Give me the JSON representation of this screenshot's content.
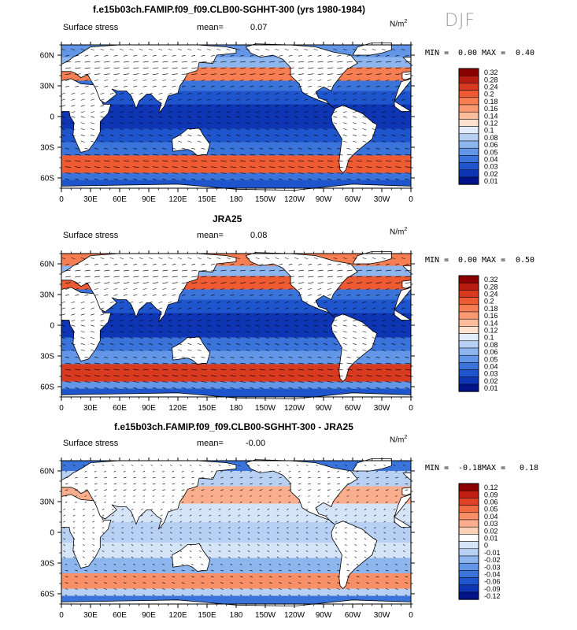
{
  "season": "DJF",
  "units_base": "N/m",
  "units_exp": "2",
  "x_ticks": [
    "0",
    "30E",
    "60E",
    "90E",
    "120E",
    "150E",
    "180",
    "150W",
    "120W",
    "90W",
    "60W",
    "30W",
    "0"
  ],
  "y_ticks": [
    "60N",
    "30N",
    "0",
    "30S",
    "60S"
  ],
  "panels": [
    {
      "title": "f.e15b03ch.FAMIP.f09_f09.CLB00-SGHHT-300 (yrs 1980-1984)",
      "field": "Surface stress",
      "mean_label": "mean=",
      "mean": "0.07",
      "min_label": "MIN =",
      "min": "0.00",
      "max_label": "MAX =",
      "max": "0.40",
      "colorbar": [
        "0.32",
        "0.28",
        "0.24",
        "0.2",
        "0.18",
        "0.16",
        "0.14",
        "0.12",
        "0.1",
        "0.08",
        "0.06",
        "0.05",
        "0.04",
        "0.03",
        "0.02",
        "0.01"
      ]
    },
    {
      "title": "JRA25",
      "field": "Surface stress",
      "mean_label": "mean=",
      "mean": "0.08",
      "min_label": "MIN =",
      "min": "0.00",
      "max_label": "MAX =",
      "max": "0.50",
      "colorbar": [
        "0.32",
        "0.28",
        "0.24",
        "0.2",
        "0.18",
        "0.16",
        "0.14",
        "0.12",
        "0.1",
        "0.08",
        "0.06",
        "0.05",
        "0.04",
        "0.03",
        "0.02",
        "0.01"
      ]
    },
    {
      "title": "f.e15b03ch.FAMIP.f09_f09.CLB00-SGHHT-300 - JRA25",
      "field": "Surface stress",
      "mean_label": "mean=",
      "mean": "-0.00",
      "min_label": "MIN =",
      "min": "-0.18",
      "max_label": "MAX =",
      "max": "0.18",
      "colorbar": [
        "0.12",
        "0.09",
        "0.06",
        "0.05",
        "0.04",
        "0.03",
        "0.02",
        "0.01",
        "0",
        "-0.01",
        "-0.02",
        "-0.03",
        "-0.04",
        "-0.06",
        "-0.09",
        "-0.12"
      ]
    }
  ],
  "colors": {
    "abs_scale": [
      "#8b0000",
      "#b81b10",
      "#d83a20",
      "#ee5a32",
      "#f77e52",
      "#fb9a72",
      "#fcbd9c",
      "#fde3cf",
      "#e2ecfa",
      "#b7d0f4",
      "#8db5ee",
      "#6396e6",
      "#3a74da",
      "#1f55cc",
      "#0e36b4",
      "#00148a"
    ],
    "diff_scale": [
      "#8b0000",
      "#c01e10",
      "#e04228",
      "#f26a42",
      "#f88f66",
      "#fbae8d",
      "#fdd0b8",
      "#ffffff",
      "#d6e4f8",
      "#b7d0f4",
      "#8db5ee",
      "#6396e6",
      "#3a74da",
      "#1f55cc",
      "#0e36b4",
      "#00148a"
    ],
    "land": "#ffffff",
    "vector": "#000000"
  },
  "chart_data": [
    {
      "type": "heatmap",
      "title": "f.e15b03ch.FAMIP.f09_f09.CLB00-SGHHT-300 (yrs 1980-1984)",
      "xlabel": "",
      "ylabel": "",
      "field": "Surface stress",
      "units": "N/m2",
      "xlim": [
        0,
        360
      ],
      "ylim": [
        -70,
        70
      ],
      "mean": 0.07,
      "min": 0.0,
      "max": 0.4,
      "levels": [
        0.01,
        0.02,
        0.03,
        0.04,
        0.05,
        0.06,
        0.08,
        0.1,
        0.12,
        0.14,
        0.16,
        0.18,
        0.2,
        0.24,
        0.28,
        0.32
      ]
    },
    {
      "type": "heatmap",
      "title": "JRA25",
      "xlabel": "",
      "ylabel": "",
      "field": "Surface stress",
      "units": "N/m2",
      "xlim": [
        0,
        360
      ],
      "ylim": [
        -70,
        70
      ],
      "mean": 0.08,
      "min": 0.0,
      "max": 0.5,
      "levels": [
        0.01,
        0.02,
        0.03,
        0.04,
        0.05,
        0.06,
        0.08,
        0.1,
        0.12,
        0.14,
        0.16,
        0.18,
        0.2,
        0.24,
        0.28,
        0.32
      ]
    },
    {
      "type": "heatmap",
      "title": "f.e15b03ch.FAMIP.f09_f09.CLB00-SGHHT-300 - JRA25",
      "xlabel": "",
      "ylabel": "",
      "field": "Surface stress",
      "units": "N/m2",
      "xlim": [
        0,
        360
      ],
      "ylim": [
        -70,
        70
      ],
      "mean": -0.0,
      "min": -0.18,
      "max": 0.18,
      "levels": [
        -0.12,
        -0.09,
        -0.06,
        -0.04,
        -0.03,
        -0.02,
        -0.01,
        0,
        0.01,
        0.02,
        0.03,
        0.04,
        0.05,
        0.06,
        0.09,
        0.12
      ]
    }
  ]
}
